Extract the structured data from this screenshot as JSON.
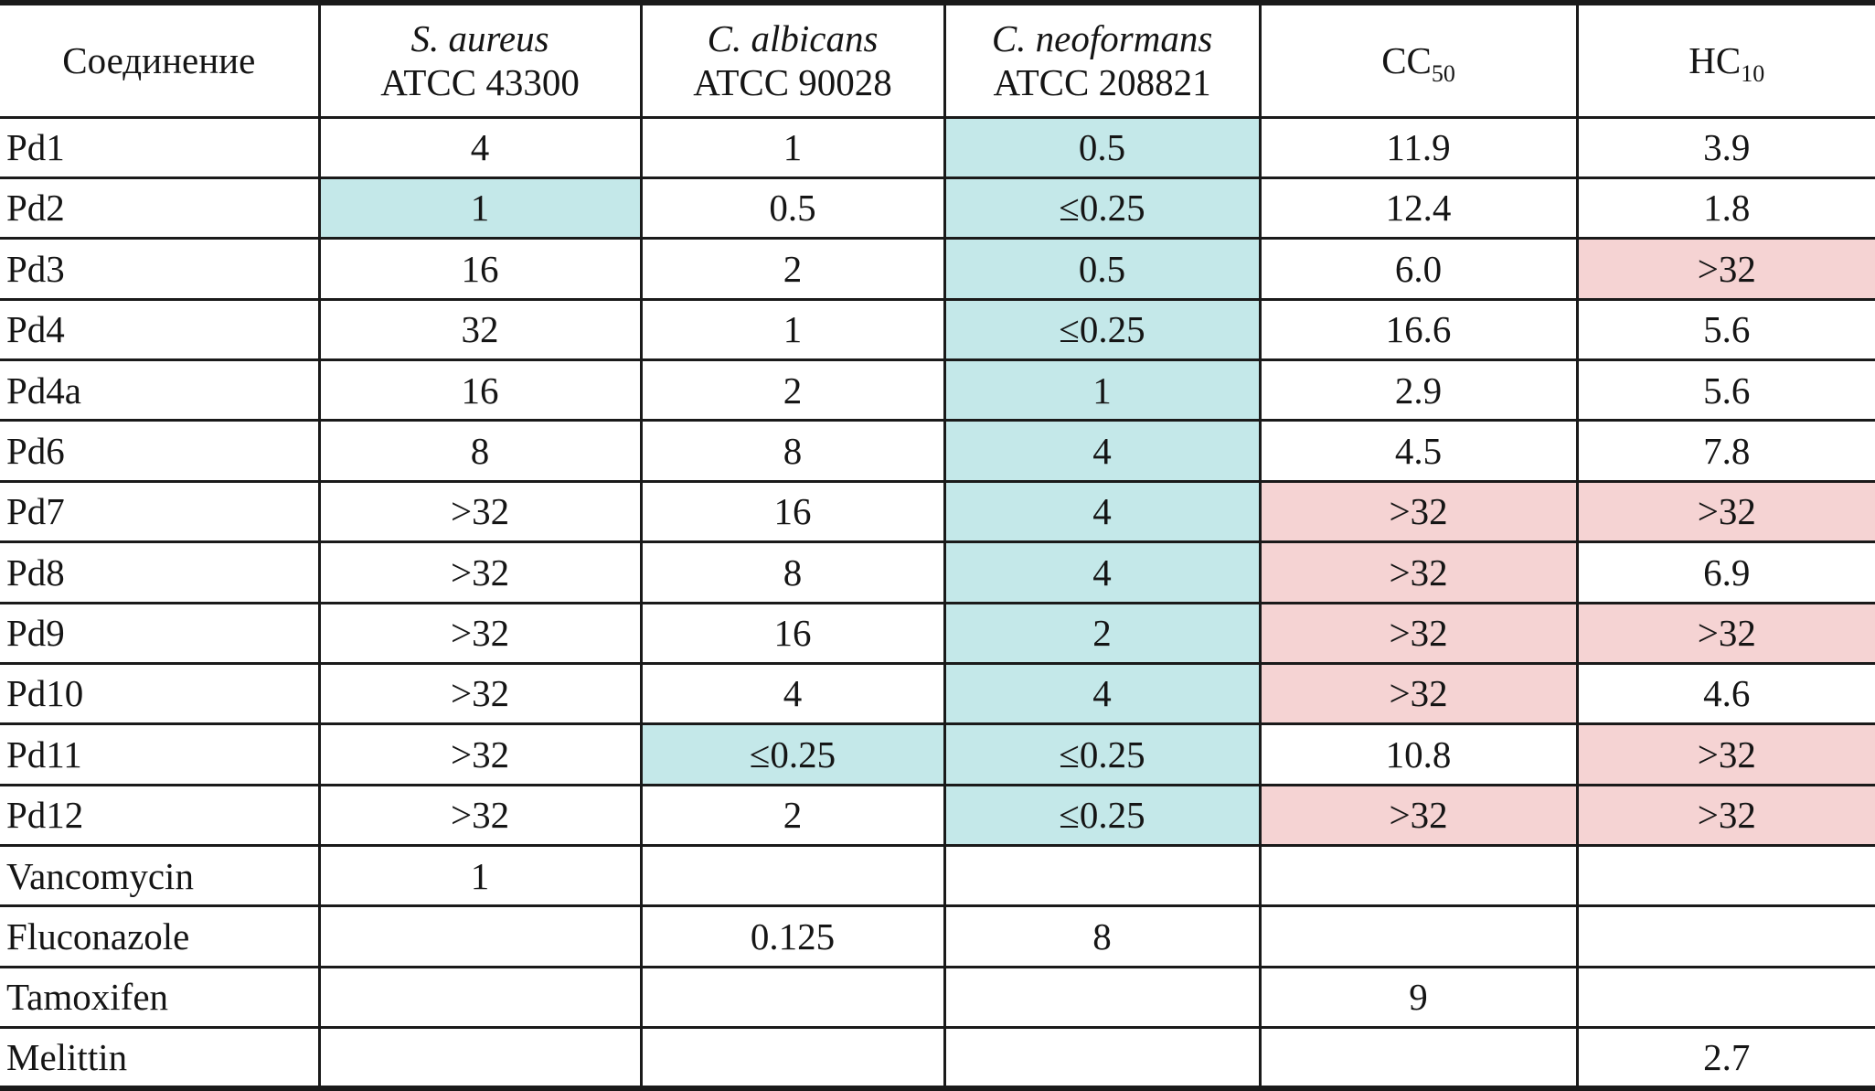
{
  "colors": {
    "highlight_cyan": "#c4e8e9",
    "highlight_pink": "#f5d3d3",
    "line": "#1a1a1a",
    "text": "#151515"
  },
  "table": {
    "header": {
      "compound": "Соединение",
      "organisms": [
        {
          "species": "S. aureus",
          "strain": "ATCC 43300"
        },
        {
          "species": "C. albicans",
          "strain": "ATCC 90028"
        },
        {
          "species": "C. neoformans",
          "strain": "ATCC 208821"
        }
      ],
      "cc50": {
        "base": "CC",
        "sub": "50"
      },
      "hc10": {
        "base": "HC",
        "sub": "10"
      }
    },
    "rows": [
      {
        "compound": "Pd1",
        "cells": [
          {
            "text": "4",
            "bg": "none"
          },
          {
            "text": "1",
            "bg": "none"
          },
          {
            "text": "0.5",
            "bg": "cyan"
          },
          {
            "text": "11.9",
            "bg": "none"
          },
          {
            "text": "3.9",
            "bg": "none"
          }
        ]
      },
      {
        "compound": "Pd2",
        "cells": [
          {
            "text": "1",
            "bg": "cyan"
          },
          {
            "text": "0.5",
            "bg": "none"
          },
          {
            "text": "≤0.25",
            "bg": "cyan"
          },
          {
            "text": "12.4",
            "bg": "none"
          },
          {
            "text": "1.8",
            "bg": "none"
          }
        ]
      },
      {
        "compound": "Pd3",
        "cells": [
          {
            "text": "16",
            "bg": "none"
          },
          {
            "text": "2",
            "bg": "none"
          },
          {
            "text": "0.5",
            "bg": "cyan"
          },
          {
            "text": "6.0",
            "bg": "none"
          },
          {
            "text": ">32",
            "bg": "pink"
          }
        ]
      },
      {
        "compound": "Pd4",
        "cells": [
          {
            "text": "32",
            "bg": "none"
          },
          {
            "text": "1",
            "bg": "none"
          },
          {
            "text": "≤0.25",
            "bg": "cyan"
          },
          {
            "text": "16.6",
            "bg": "none"
          },
          {
            "text": "5.6",
            "bg": "none"
          }
        ]
      },
      {
        "compound": "Pd4a",
        "cells": [
          {
            "text": "16",
            "bg": "none"
          },
          {
            "text": "2",
            "bg": "none"
          },
          {
            "text": "1",
            "bg": "cyan"
          },
          {
            "text": "2.9",
            "bg": "none"
          },
          {
            "text": "5.6",
            "bg": "none"
          }
        ]
      },
      {
        "compound": "Pd6",
        "cells": [
          {
            "text": "8",
            "bg": "none"
          },
          {
            "text": "8",
            "bg": "none"
          },
          {
            "text": "4",
            "bg": "cyan"
          },
          {
            "text": "4.5",
            "bg": "none"
          },
          {
            "text": "7.8",
            "bg": "none"
          }
        ]
      },
      {
        "compound": "Pd7",
        "cells": [
          {
            "text": ">32",
            "bg": "none"
          },
          {
            "text": "16",
            "bg": "none"
          },
          {
            "text": "4",
            "bg": "cyan"
          },
          {
            "text": ">32",
            "bg": "pink"
          },
          {
            "text": ">32",
            "bg": "pink"
          }
        ]
      },
      {
        "compound": "Pd8",
        "cells": [
          {
            "text": ">32",
            "bg": "none"
          },
          {
            "text": "8",
            "bg": "none"
          },
          {
            "text": "4",
            "bg": "cyan"
          },
          {
            "text": ">32",
            "bg": "pink"
          },
          {
            "text": "6.9",
            "bg": "none"
          }
        ]
      },
      {
        "compound": "Pd9",
        "cells": [
          {
            "text": ">32",
            "bg": "none"
          },
          {
            "text": "16",
            "bg": "none"
          },
          {
            "text": "2",
            "bg": "cyan"
          },
          {
            "text": ">32",
            "bg": "pink"
          },
          {
            "text": ">32",
            "bg": "pink"
          }
        ]
      },
      {
        "compound": "Pd10",
        "cells": [
          {
            "text": ">32",
            "bg": "none"
          },
          {
            "text": "4",
            "bg": "none"
          },
          {
            "text": "4",
            "bg": "cyan"
          },
          {
            "text": ">32",
            "bg": "pink"
          },
          {
            "text": "4.6",
            "bg": "none"
          }
        ]
      },
      {
        "compound": "Pd11",
        "cells": [
          {
            "text": ">32",
            "bg": "none"
          },
          {
            "text": "≤0.25",
            "bg": "cyan"
          },
          {
            "text": "≤0.25",
            "bg": "cyan"
          },
          {
            "text": "10.8",
            "bg": "none"
          },
          {
            "text": ">32",
            "bg": "pink"
          }
        ]
      },
      {
        "compound": "Pd12",
        "cells": [
          {
            "text": ">32",
            "bg": "none"
          },
          {
            "text": "2",
            "bg": "none"
          },
          {
            "text": "≤0.25",
            "bg": "cyan"
          },
          {
            "text": ">32",
            "bg": "pink"
          },
          {
            "text": ">32",
            "bg": "pink"
          }
        ]
      },
      {
        "compound": "Vancomycin",
        "cells": [
          {
            "text": "1",
            "bg": "none"
          },
          {
            "text": "",
            "bg": "none"
          },
          {
            "text": "",
            "bg": "none"
          },
          {
            "text": "",
            "bg": "none"
          },
          {
            "text": "",
            "bg": "none"
          }
        ]
      },
      {
        "compound": "Fluconazole",
        "cells": [
          {
            "text": "",
            "bg": "none"
          },
          {
            "text": "0.125",
            "bg": "none"
          },
          {
            "text": "8",
            "bg": "none"
          },
          {
            "text": "",
            "bg": "none"
          },
          {
            "text": "",
            "bg": "none"
          }
        ]
      },
      {
        "compound": "Tamoxifen",
        "cells": [
          {
            "text": "",
            "bg": "none"
          },
          {
            "text": "",
            "bg": "none"
          },
          {
            "text": "",
            "bg": "none"
          },
          {
            "text": "9",
            "bg": "none"
          },
          {
            "text": "",
            "bg": "none"
          }
        ]
      },
      {
        "compound": "Melittin",
        "cells": [
          {
            "text": "",
            "bg": "none"
          },
          {
            "text": "",
            "bg": "none"
          },
          {
            "text": "",
            "bg": "none"
          },
          {
            "text": "",
            "bg": "none"
          },
          {
            "text": "2.7",
            "bg": "none"
          }
        ]
      }
    ]
  }
}
